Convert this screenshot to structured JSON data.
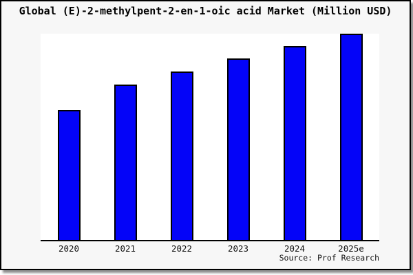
{
  "chart": {
    "title": "Global (E)-2-methylpent-2-en-1-oic acid Market (Million USD)",
    "source": "Source: Prof Research"
  },
  "colors": {
    "bar_fill": "#0404f8",
    "bar_border": "#000000",
    "widget_background": "#f7f7f7",
    "plot_background": "#ffffff",
    "axis_line": "#000000",
    "text": "#000000"
  },
  "chart_data": {
    "type": "bar",
    "title": "Global (E)-2-methylpent-2-en-1-oic acid Market (Million USD)",
    "categories": [
      "2020",
      "2021",
      "2022",
      "2023",
      "2024",
      "2025e"
    ],
    "values": [
      63,
      75.3,
      81.7,
      88,
      94,
      100
    ],
    "values_scale": "relative index estimated from bar heights, 2025e = 100; no y-axis tick labels are shown in the chart",
    "xlabel": "",
    "ylabel": "",
    "ylim": [
      0,
      100
    ],
    "grid": false,
    "legend": false,
    "y_axis_visible": false,
    "bar_color": "#0404f8",
    "annotation": "Source: Prof Research"
  }
}
